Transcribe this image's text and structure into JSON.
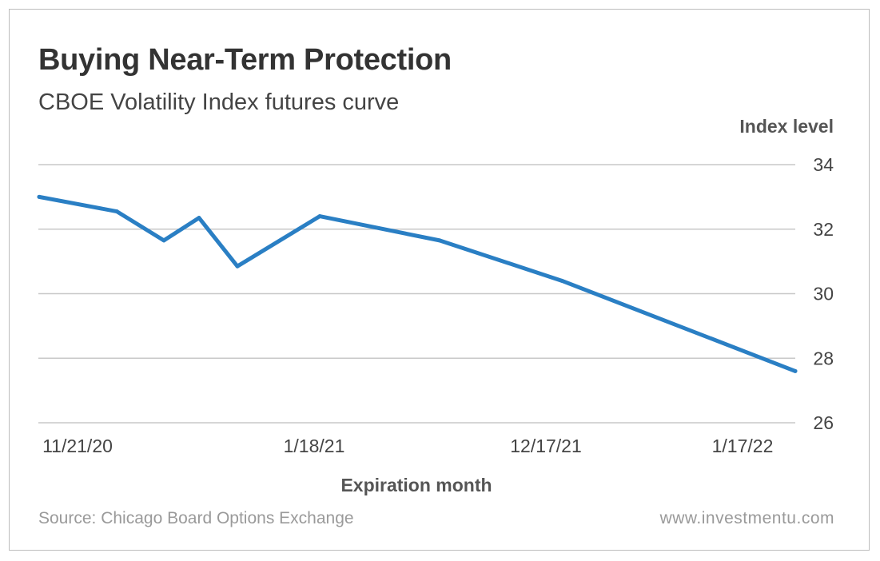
{
  "title": "Buying Near-Term Protection",
  "subtitle": "CBOE Volatility Index futures curve",
  "source": "Source: Chicago Board Options Exchange",
  "website": "www.investmentu.com",
  "colors": {
    "line": "#2a7fc4",
    "grid": "#c8c8c8",
    "text": "#444444",
    "muted": "#9a9a9a"
  },
  "chart_data": {
    "type": "line",
    "xlabel": "Expiration month",
    "ylabel": "Index level",
    "ylim": [
      26,
      34
    ],
    "y_ticks": [
      26,
      28,
      30,
      32,
      34
    ],
    "x_tick_labels": [
      "11/21/20",
      "1/18/21",
      "12/17/21",
      "1/17/22"
    ],
    "grid": "horizontal",
    "series": [
      {
        "points": [
          {
            "x": "11/21/20",
            "y": 33.0
          },
          {
            "x": "",
            "y": 32.55
          },
          {
            "x": "",
            "y": 31.65
          },
          {
            "x": "",
            "y": 32.35
          },
          {
            "x": "",
            "y": 30.85
          },
          {
            "x": "1/18/21",
            "y": 32.4
          },
          {
            "x": "",
            "y": 31.65
          },
          {
            "x": "12/17/21",
            "y": 30.4
          },
          {
            "x": "1/17/22",
            "y": 27.6
          }
        ]
      }
    ]
  }
}
